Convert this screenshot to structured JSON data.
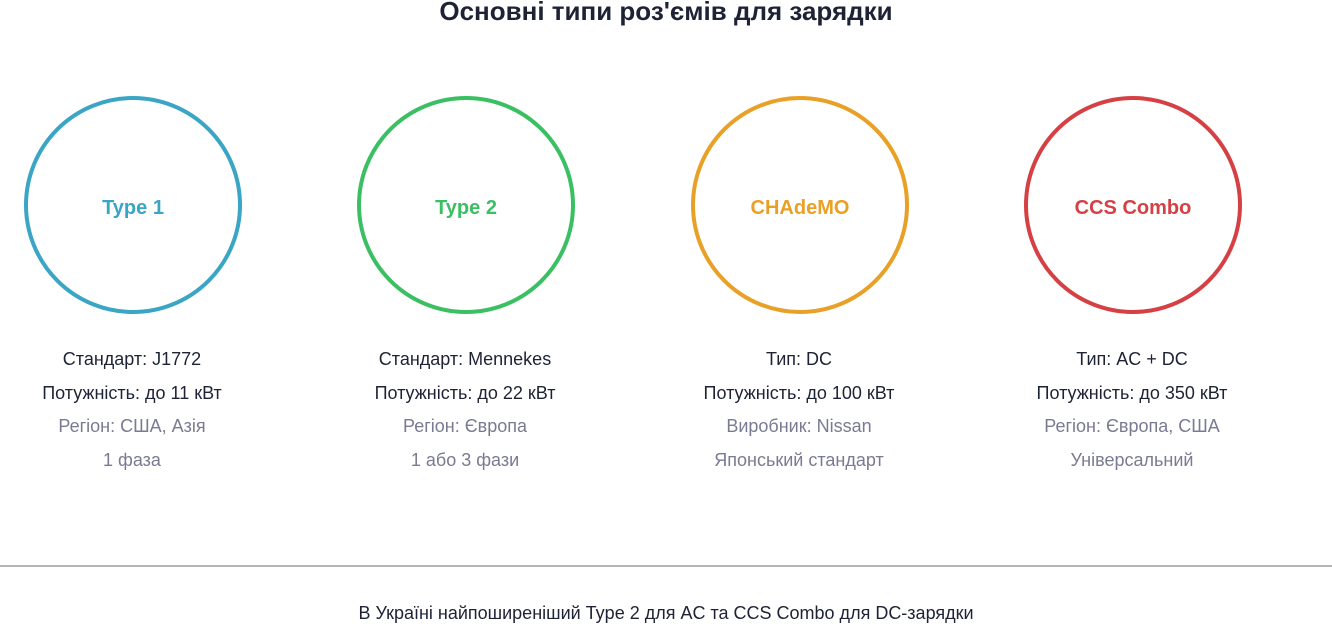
{
  "title": "Основні типи роз'ємів для зарядки",
  "connectors": [
    {
      "name": "Type 1",
      "color": "#3aa5c4",
      "lines": [
        "Стандарт: J1772",
        "Потужність: до 11 кВт",
        "Регіон: США, Азія",
        "1 фаза"
      ]
    },
    {
      "name": "Type 2",
      "color": "#3bbf63",
      "lines": [
        "Стандарт: Mennekes",
        "Потужність: до 22 кВт",
        "Регіон: Європа",
        "1 або 3 фази"
      ]
    },
    {
      "name": "CHAdeMO",
      "color": "#e9a026",
      "lines": [
        "Тип: DC",
        "Потужність: до 100 кВт",
        "Виробник: Nissan",
        "Японський стандарт"
      ]
    },
    {
      "name": "CCS Combo",
      "color": "#d54045",
      "lines": [
        "Тип: AC + DC",
        "Потужність: до 350 кВт",
        "Регіон: Європа, США",
        "Універсальний"
      ]
    }
  ],
  "footer": "В Україні найпоширеніший Type 2 для AC та CCS Combo для DC-зарядки"
}
